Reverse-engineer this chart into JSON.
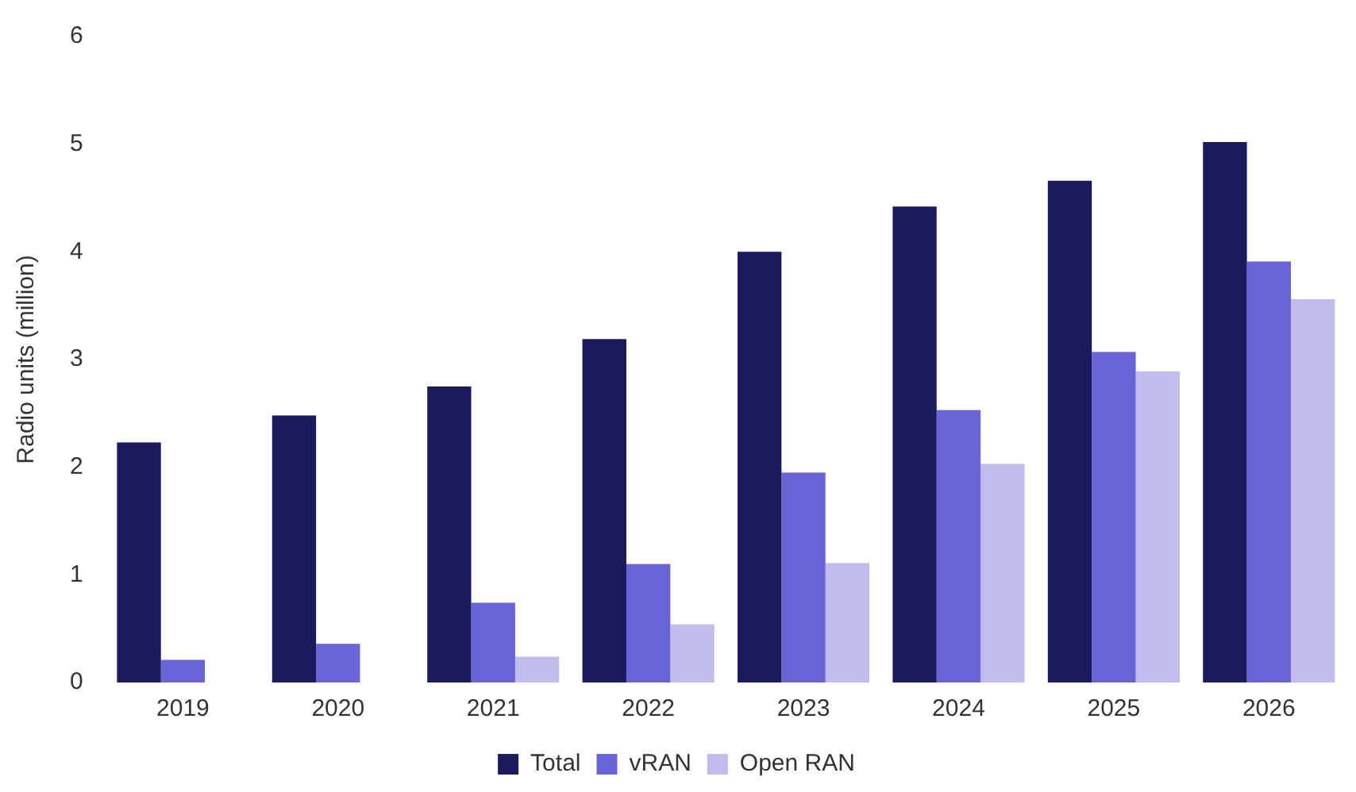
{
  "chart_data": {
    "type": "bar",
    "ylabel": "Radio units (million)",
    "categories": [
      "2019",
      "2020",
      "2021",
      "2022",
      "2023",
      "2024",
      "2025",
      "2026"
    ],
    "series": [
      {
        "name": "Total",
        "color": "#1c1a5e",
        "values": [
          2.23,
          2.48,
          2.75,
          3.19,
          4.0,
          4.42,
          4.66,
          5.02
        ]
      },
      {
        "name": "vRAN",
        "color": "#6a64d6",
        "values": [
          0.21,
          0.36,
          0.74,
          1.1,
          1.95,
          2.53,
          3.07,
          3.91
        ]
      },
      {
        "name": "Open RAN",
        "color": "#c0bcec",
        "values": [
          null,
          null,
          0.24,
          0.54,
          1.11,
          2.03,
          2.89,
          3.56
        ]
      }
    ],
    "ylim": [
      0,
      6
    ],
    "yticks": [
      0,
      1,
      2,
      3,
      4,
      5,
      6
    ],
    "grid": false,
    "legend": "bottom"
  }
}
